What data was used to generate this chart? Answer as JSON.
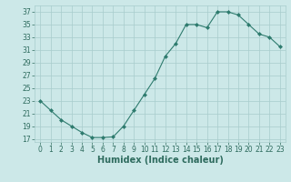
{
  "x": [
    0,
    1,
    2,
    3,
    4,
    5,
    6,
    7,
    8,
    9,
    10,
    11,
    12,
    13,
    14,
    15,
    16,
    17,
    18,
    19,
    20,
    21,
    22,
    23
  ],
  "y": [
    23,
    21.5,
    20,
    19,
    18,
    17.2,
    17.2,
    17.3,
    19,
    21.5,
    24,
    26.5,
    30,
    32,
    35,
    35,
    34.5,
    37,
    37,
    36.5,
    35,
    33.5,
    33,
    31.5
  ],
  "line_color": "#2e7b6e",
  "marker": "D",
  "marker_size": 2,
  "bg_color": "#cce8e8",
  "grid_color": "#a8cccc",
  "xlabel": "Humidex (Indice chaleur)",
  "xlim": [
    -0.5,
    23.5
  ],
  "ylim": [
    16.5,
    38
  ],
  "yticks": [
    17,
    19,
    21,
    23,
    25,
    27,
    29,
    31,
    33,
    35,
    37
  ],
  "xticks": [
    0,
    1,
    2,
    3,
    4,
    5,
    6,
    7,
    8,
    9,
    10,
    11,
    12,
    13,
    14,
    15,
    16,
    17,
    18,
    19,
    20,
    21,
    22,
    23
  ],
  "tick_fontsize": 5.5,
  "xlabel_fontsize": 7,
  "label_color": "#2e6b5e"
}
